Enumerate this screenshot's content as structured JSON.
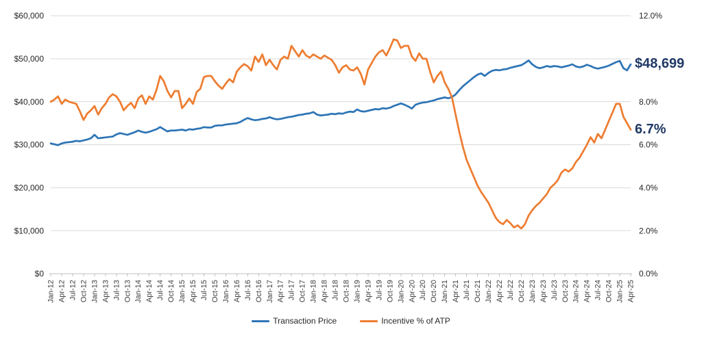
{
  "chart_data": {
    "type": "line",
    "title": "",
    "x_frequency": "monthly",
    "x_range": [
      "Jan-12",
      "Apr-25"
    ],
    "x_tick_labels": [
      "Jan-12",
      "Apr-12",
      "Jul-12",
      "Oct-12",
      "Jan-13",
      "Apr-13",
      "Jul-13",
      "Oct-13",
      "Jan-14",
      "Apr-14",
      "Jul-14",
      "Oct-14",
      "Jan-15",
      "Apr-15",
      "Jul-15",
      "Oct-15",
      "Jan-16",
      "Apr-16",
      "Jul-16",
      "Oct-16",
      "Jan-17",
      "Apr-17",
      "Jul-17",
      "Oct-17",
      "Jan-18",
      "Apr-18",
      "Jul-18",
      "Oct-18",
      "Jan-19",
      "Apr-19",
      "Jul-19",
      "Oct-19",
      "Jan-20",
      "Apr-20",
      "Jul-20",
      "Oct-20",
      "Jan-21",
      "Apr-21",
      "Jul-21",
      "Oct-21",
      "Jan-22",
      "Apr-22",
      "Jul-22",
      "Oct-22",
      "Jan-23",
      "Apr-23",
      "Jul-23",
      "Oct-23",
      "Jan-24",
      "Apr-24",
      "Jul-24",
      "Oct-24",
      "Jan-25",
      "Apr-25"
    ],
    "grid": "horizontal",
    "legend_position": "bottom",
    "axes": {
      "left": {
        "min": 0,
        "max": 60000,
        "ticks": [
          {
            "label": "$60,000",
            "value": 60000
          },
          {
            "label": "$50,000",
            "value": 50000
          },
          {
            "label": "$40,000",
            "value": 40000
          },
          {
            "label": "$30,000",
            "value": 30000
          },
          {
            "label": "$20,000",
            "value": 20000
          },
          {
            "label": "$10,000",
            "value": 10000
          },
          {
            "label": "$0",
            "value": 0
          }
        ]
      },
      "right": {
        "min": 0,
        "max": 12,
        "ticks": [
          {
            "label": "12.0%",
            "value": 12
          },
          {
            "label": "8.0%",
            "value": 8
          },
          {
            "label": "6.0%",
            "value": 6
          },
          {
            "label": "4.0%",
            "value": 4
          },
          {
            "label": "2.0%",
            "value": 2
          },
          {
            "label": "0.0%",
            "value": 0
          }
        ]
      }
    },
    "series": [
      {
        "name": "Transaction Price",
        "axis": "left",
        "color": "#2E75B6",
        "end_label": "$48,699",
        "values": [
          30300,
          30100,
          29900,
          30300,
          30500,
          30600,
          30700,
          30900,
          30800,
          31000,
          31200,
          31500,
          32300,
          31500,
          31600,
          31700,
          31800,
          31900,
          32400,
          32700,
          32500,
          32300,
          32600,
          32900,
          33300,
          33000,
          32800,
          33000,
          33300,
          33600,
          34100,
          33600,
          33100,
          33300,
          33300,
          33400,
          33500,
          33300,
          33600,
          33500,
          33700,
          33800,
          34100,
          34000,
          34000,
          34400,
          34500,
          34500,
          34700,
          34800,
          34900,
          35000,
          35300,
          35800,
          36200,
          35900,
          35700,
          35800,
          36000,
          36100,
          36400,
          36100,
          35900,
          36000,
          36200,
          36400,
          36500,
          36700,
          36900,
          37000,
          37200,
          37300,
          37600,
          37000,
          36800,
          36900,
          37000,
          37200,
          37100,
          37300,
          37200,
          37500,
          37700,
          37600,
          38200,
          37800,
          37700,
          37900,
          38100,
          38300,
          38200,
          38500,
          38400,
          38600,
          39000,
          39300,
          39600,
          39300,
          38900,
          38400,
          39300,
          39600,
          39800,
          39900,
          40100,
          40300,
          40600,
          40800,
          41000,
          40800,
          41100,
          41700,
          42700,
          43600,
          44300,
          45000,
          45700,
          46300,
          46600,
          46000,
          46700,
          47200,
          47400,
          47300,
          47500,
          47600,
          47900,
          48100,
          48300,
          48500,
          49000,
          49600,
          48700,
          48100,
          47800,
          48000,
          48300,
          48100,
          48300,
          48200,
          48000,
          48200,
          48400,
          48700,
          48200,
          48000,
          48200,
          48600,
          48300,
          47900,
          47700,
          47900,
          48100,
          48400,
          48800,
          49200,
          49500,
          47800,
          47300,
          48699
        ]
      },
      {
        "name": "Incentive % of ATP",
        "axis": "right",
        "color": "#ED7D31",
        "end_label": "6.7%",
        "values": [
          8.0,
          8.1,
          8.25,
          7.9,
          8.1,
          8.0,
          7.95,
          7.9,
          7.55,
          7.15,
          7.45,
          7.6,
          7.8,
          7.4,
          7.7,
          7.9,
          8.2,
          8.35,
          8.25,
          8.0,
          7.6,
          7.8,
          7.95,
          7.7,
          8.15,
          8.3,
          7.9,
          8.25,
          8.1,
          8.55,
          9.2,
          8.95,
          8.5,
          8.2,
          8.5,
          8.5,
          7.7,
          7.9,
          8.15,
          7.9,
          8.45,
          8.6,
          9.15,
          9.2,
          9.2,
          8.95,
          8.75,
          8.6,
          8.85,
          9.05,
          8.9,
          9.4,
          9.6,
          9.75,
          9.65,
          9.45,
          10.1,
          9.85,
          10.2,
          9.7,
          9.95,
          9.7,
          9.5,
          9.95,
          10.1,
          10.0,
          10.6,
          10.35,
          10.1,
          10.4,
          10.15,
          10.05,
          10.2,
          10.1,
          10.0,
          10.15,
          10.05,
          9.95,
          9.7,
          9.35,
          9.6,
          9.7,
          9.5,
          9.45,
          9.6,
          9.3,
          8.8,
          9.5,
          9.8,
          10.1,
          10.3,
          10.4,
          10.15,
          10.5,
          10.9,
          10.85,
          10.5,
          10.6,
          10.6,
          10.1,
          9.9,
          10.25,
          10.0,
          10.0,
          9.4,
          8.9,
          9.2,
          9.4,
          8.9,
          8.6,
          8.2,
          7.4,
          6.6,
          5.9,
          5.3,
          4.9,
          4.5,
          4.1,
          3.8,
          3.55,
          3.3,
          2.95,
          2.6,
          2.4,
          2.3,
          2.5,
          2.35,
          2.15,
          2.25,
          2.1,
          2.3,
          2.7,
          2.95,
          3.15,
          3.3,
          3.5,
          3.7,
          4.0,
          4.15,
          4.35,
          4.7,
          4.85,
          4.75,
          4.9,
          5.2,
          5.4,
          5.7,
          6.0,
          6.35,
          6.1,
          6.5,
          6.3,
          6.7,
          7.1,
          7.5,
          7.9,
          7.9,
          7.3,
          7.0,
          6.7
        ]
      }
    ],
    "style": {
      "grid_color": "#D9D9D9",
      "axis_color": "#BFBFBF",
      "tick_label_color": "#404040",
      "y_label_color": "#262626",
      "data_label_color": "#1F3864",
      "background": "#FFFFFF"
    }
  }
}
